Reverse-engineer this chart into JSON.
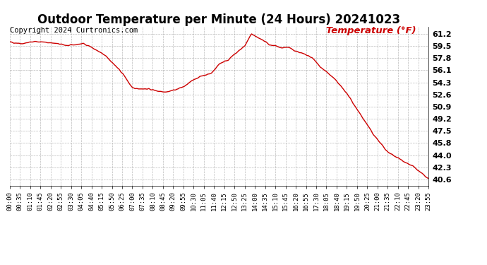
{
  "title": "Outdoor Temperature per Minute (24 Hours) 20241023",
  "copyright_text": "Copyright 2024 Curtronics.com",
  "legend_text": "Temperature (°F)",
  "legend_color": "#cc0000",
  "line_color": "#cc0000",
  "background_color": "#ffffff",
  "grid_color": "#aaaaaa",
  "y_ticks": [
    40.6,
    42.3,
    44.0,
    45.8,
    47.5,
    49.2,
    50.9,
    52.6,
    54.3,
    56.1,
    57.8,
    59.5,
    61.2
  ],
  "ylim": [
    39.8,
    62.2
  ],
  "x_tick_labels": [
    "00:00",
    "00:35",
    "01:10",
    "01:45",
    "02:20",
    "02:55",
    "03:30",
    "04:05",
    "04:40",
    "05:15",
    "05:50",
    "06:25",
    "07:00",
    "07:35",
    "08:10",
    "08:45",
    "09:20",
    "09:55",
    "10:30",
    "11:05",
    "11:40",
    "12:15",
    "12:50",
    "13:25",
    "14:00",
    "14:35",
    "15:10",
    "15:45",
    "16:20",
    "16:55",
    "17:30",
    "18:05",
    "18:40",
    "19:15",
    "19:50",
    "20:25",
    "21:00",
    "21:35",
    "22:10",
    "22:45",
    "23:20",
    "23:55"
  ],
  "title_fontsize": 12,
  "copyright_fontsize": 7.5,
  "legend_fontsize": 9.5,
  "tick_fontsize": 6.5,
  "ytick_fontsize": 8,
  "line_width": 1.0,
  "waypoints_t": [
    0.0,
    0.03,
    0.06,
    0.1,
    0.14,
    0.175,
    0.188,
    0.23,
    0.27,
    0.292,
    0.33,
    0.354,
    0.375,
    0.4,
    0.417,
    0.44,
    0.46,
    0.48,
    0.5,
    0.52,
    0.54,
    0.56,
    0.576,
    0.585,
    0.595,
    0.61,
    0.618,
    0.63,
    0.646,
    0.66,
    0.68,
    0.7,
    0.72,
    0.729,
    0.74,
    0.75,
    0.77,
    0.8,
    0.833,
    0.866,
    0.9,
    0.93,
    0.96,
    0.985,
    1.0
  ],
  "waypoints_v": [
    60.0,
    59.8,
    60.1,
    59.9,
    59.5,
    59.8,
    59.5,
    58.0,
    55.5,
    53.5,
    53.4,
    53.1,
    53.0,
    53.4,
    53.8,
    54.8,
    55.3,
    55.6,
    57.0,
    57.5,
    58.5,
    59.5,
    61.2,
    60.8,
    60.5,
    60.0,
    59.5,
    59.5,
    59.2,
    59.3,
    58.8,
    58.3,
    57.8,
    57.2,
    56.5,
    56.0,
    55.0,
    53.0,
    50.0,
    47.0,
    44.5,
    43.5,
    42.5,
    41.3,
    40.6
  ]
}
